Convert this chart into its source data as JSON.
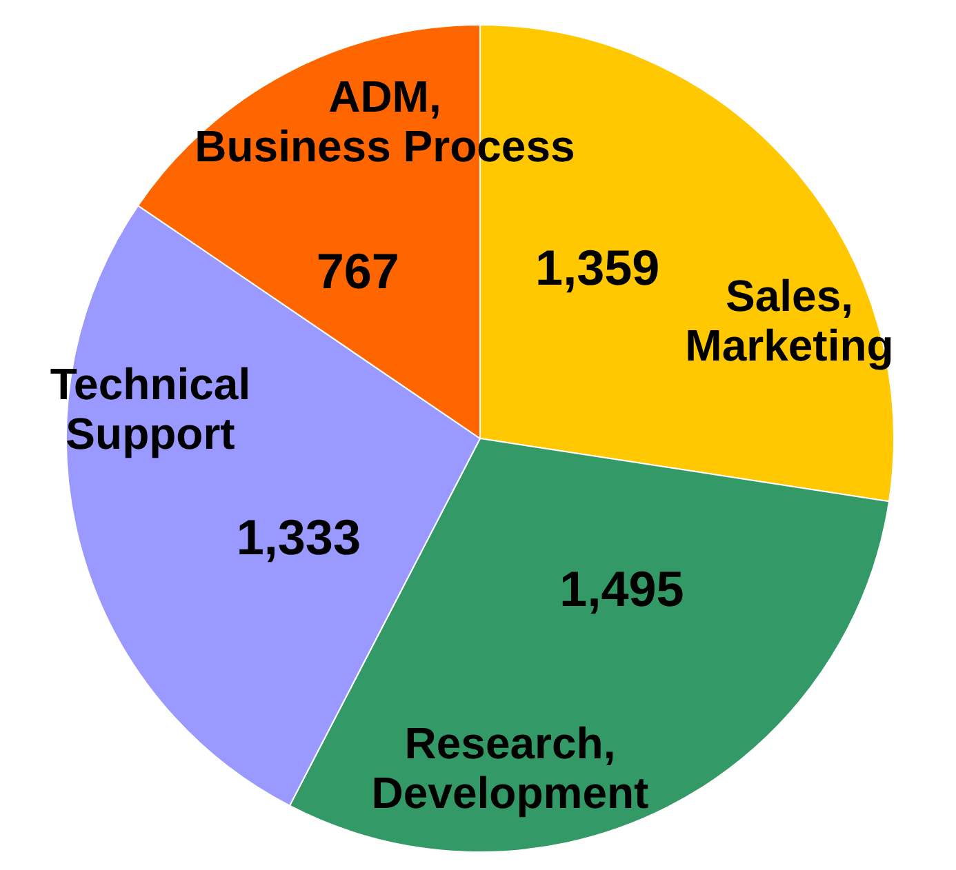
{
  "chart_data": {
    "type": "pie",
    "categories": [
      "Sales, Marketing",
      "Research, Development",
      "Technical Support",
      "ADM, Business Process"
    ],
    "values": [
      1359,
      1495,
      1333,
      767
    ],
    "colors": [
      "#ffc800",
      "#339966",
      "#9999ff",
      "#ff6600"
    ],
    "value_labels": [
      "1,359",
      "1,495",
      "1,333",
      "767"
    ]
  }
}
